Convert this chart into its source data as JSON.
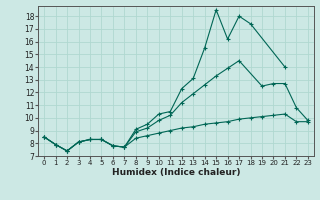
{
  "xlabel": "Humidex (Indice chaleur)",
  "background_color": "#cce8e4",
  "grid_color": "#b0d8d0",
  "line_color": "#006655",
  "xlim": [
    -0.5,
    23.5
  ],
  "ylim": [
    7,
    18.8
  ],
  "xticks": [
    0,
    1,
    2,
    3,
    4,
    5,
    6,
    7,
    8,
    9,
    10,
    11,
    12,
    13,
    14,
    15,
    16,
    17,
    18,
    19,
    20,
    21,
    22,
    23
  ],
  "yticks": [
    7,
    8,
    9,
    10,
    11,
    12,
    13,
    14,
    15,
    16,
    17,
    18
  ],
  "series": [
    {
      "x": [
        0,
        1,
        2,
        3,
        4,
        5,
        6,
        7,
        8,
        9,
        10,
        11,
        12,
        13,
        14,
        15,
        16,
        17,
        18,
        21
      ],
      "y": [
        8.5,
        7.9,
        7.4,
        8.1,
        8.3,
        8.3,
        7.8,
        7.7,
        9.1,
        9.5,
        10.3,
        10.5,
        12.3,
        13.1,
        15.5,
        18.5,
        16.2,
        18.0,
        17.4,
        14.0
      ]
    },
    {
      "x": [
        0,
        1,
        2,
        3,
        4,
        5,
        6,
        7,
        8,
        9,
        10,
        11,
        12,
        13,
        14,
        15,
        16,
        17,
        19,
        20,
        21,
        22,
        23
      ],
      "y": [
        8.5,
        7.9,
        7.4,
        8.1,
        8.3,
        8.3,
        7.8,
        7.7,
        8.9,
        9.2,
        9.8,
        10.2,
        11.2,
        11.9,
        12.6,
        13.3,
        13.9,
        14.5,
        12.5,
        12.7,
        12.7,
        10.8,
        9.8
      ]
    },
    {
      "x": [
        0,
        1,
        2,
        3,
        4,
        5,
        6,
        7,
        8,
        9,
        10,
        11,
        12,
        13,
        14,
        15,
        16,
        17,
        18,
        19,
        20,
        21,
        22,
        23
      ],
      "y": [
        8.5,
        7.9,
        7.4,
        8.1,
        8.3,
        8.3,
        7.8,
        7.7,
        8.4,
        8.6,
        8.8,
        9.0,
        9.2,
        9.3,
        9.5,
        9.6,
        9.7,
        9.9,
        10.0,
        10.1,
        10.2,
        10.3,
        9.7,
        9.7
      ]
    }
  ]
}
